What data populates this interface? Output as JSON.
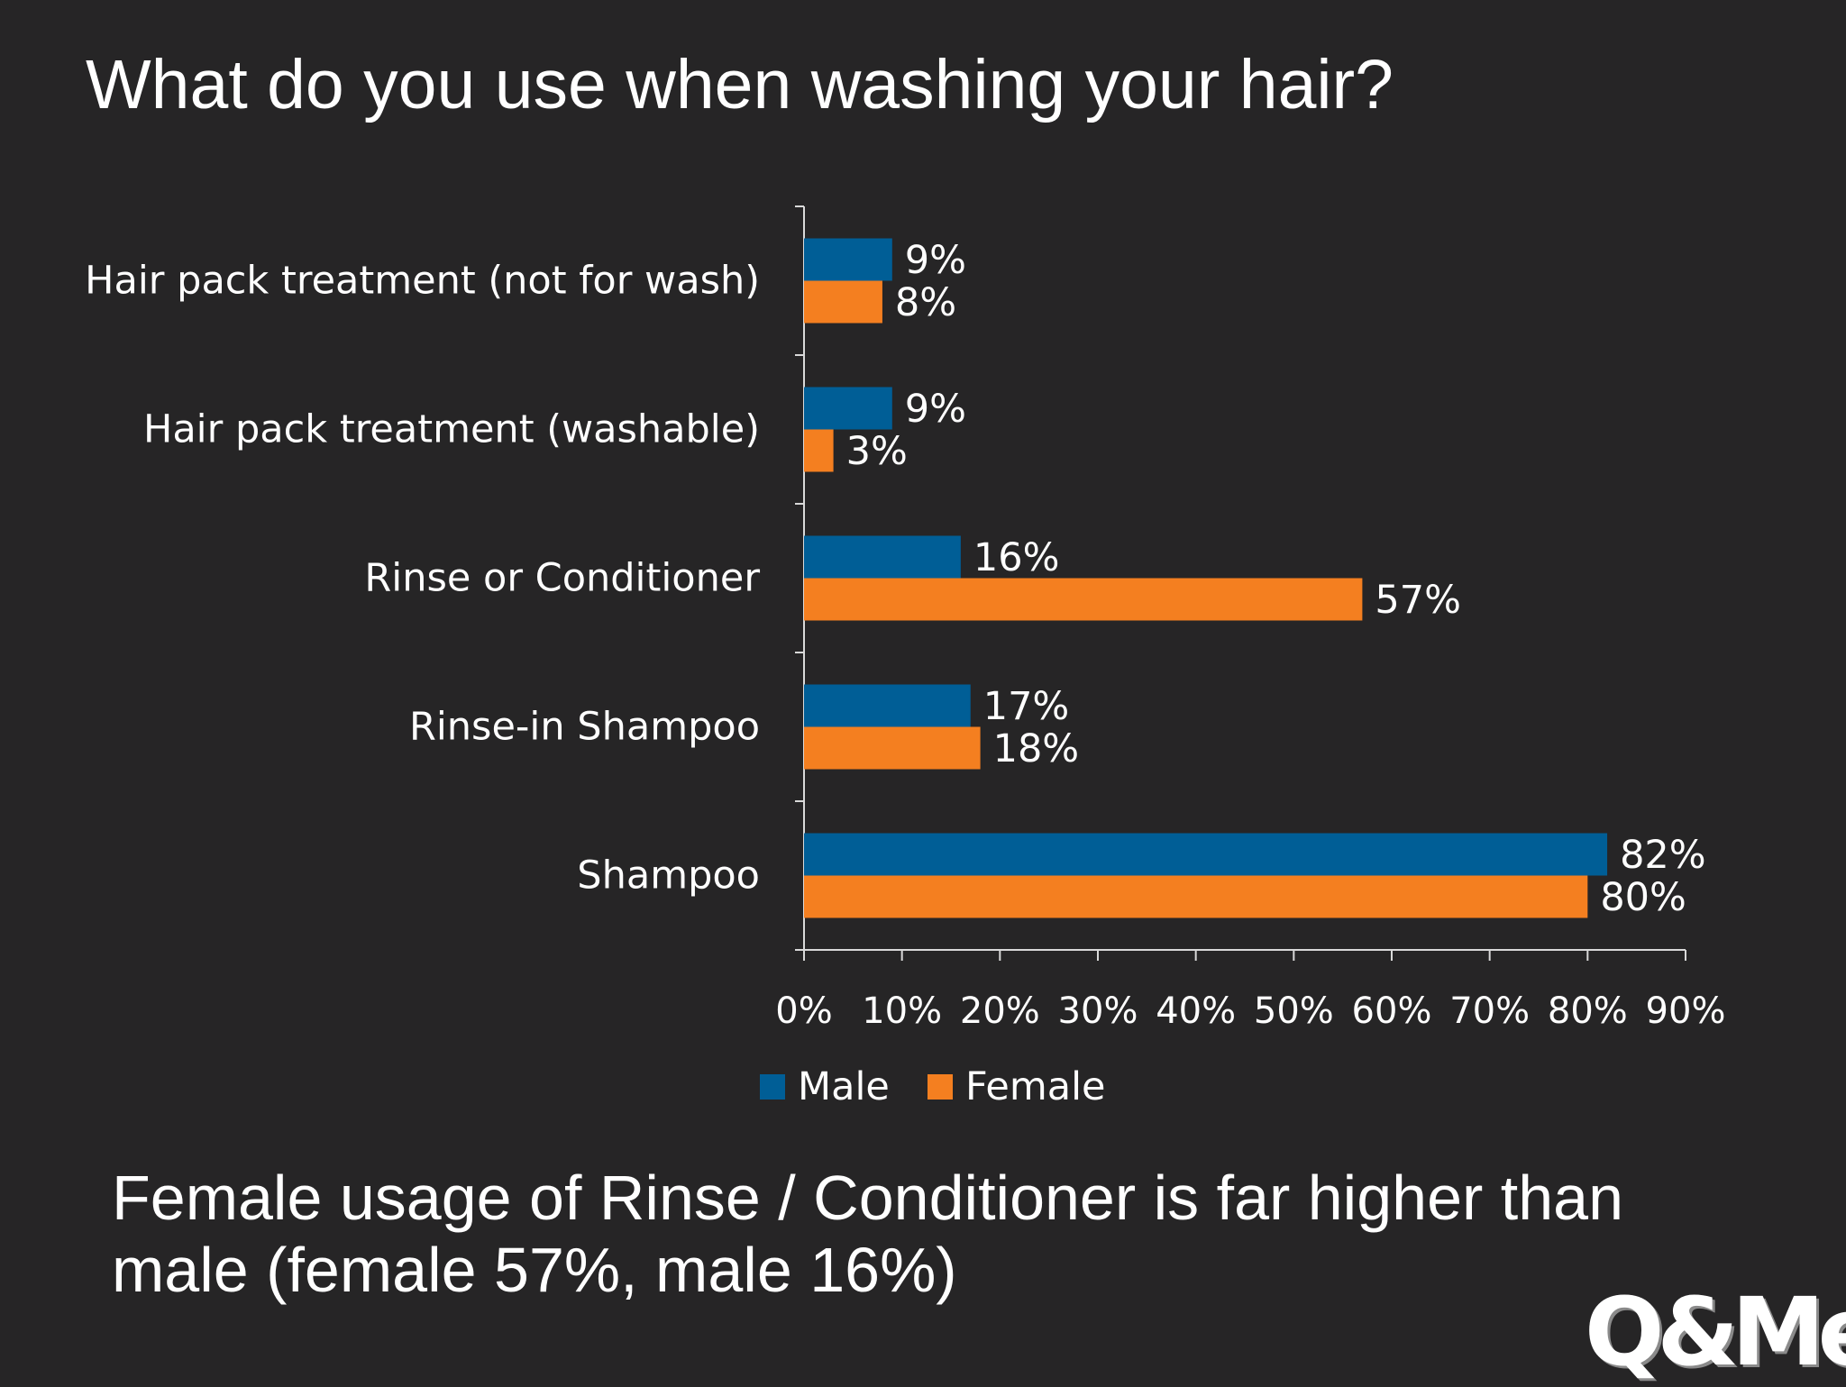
{
  "slide": {
    "title": "What do you use when washing your hair?",
    "footer": "Female usage of Rinse / Conditioner is far higher than male (female 57%, male 16%)",
    "logo_text": "Q&Me"
  },
  "colors": {
    "background": "#262526",
    "male": "#005e96",
    "female": "#f47f20",
    "text": "#ffffff",
    "axis": "#d9d9d9"
  },
  "chart_data": {
    "type": "bar",
    "orientation": "horizontal",
    "categories": [
      "Hair pack treatment (not for wash)",
      "Hair pack treatment (washable)",
      "Rinse or Conditioner",
      "Rinse-in Shampoo",
      "Shampoo"
    ],
    "series": [
      {
        "name": "Male",
        "color": "#005e96",
        "values": [
          9,
          9,
          16,
          17,
          82
        ],
        "labels": [
          "9%",
          "9%",
          "16%",
          "17%",
          "82%"
        ]
      },
      {
        "name": "Female",
        "color": "#f47f20",
        "values": [
          8,
          3,
          57,
          18,
          80
        ],
        "labels": [
          "8%",
          "3%",
          "57%",
          "18%",
          "80%"
        ]
      }
    ],
    "xlim": [
      0,
      90
    ],
    "xticks": [
      "0%",
      "10%",
      "20%",
      "30%",
      "40%",
      "50%",
      "60%",
      "70%",
      "80%",
      "90%"
    ],
    "grid": false,
    "legend": "bottom"
  }
}
